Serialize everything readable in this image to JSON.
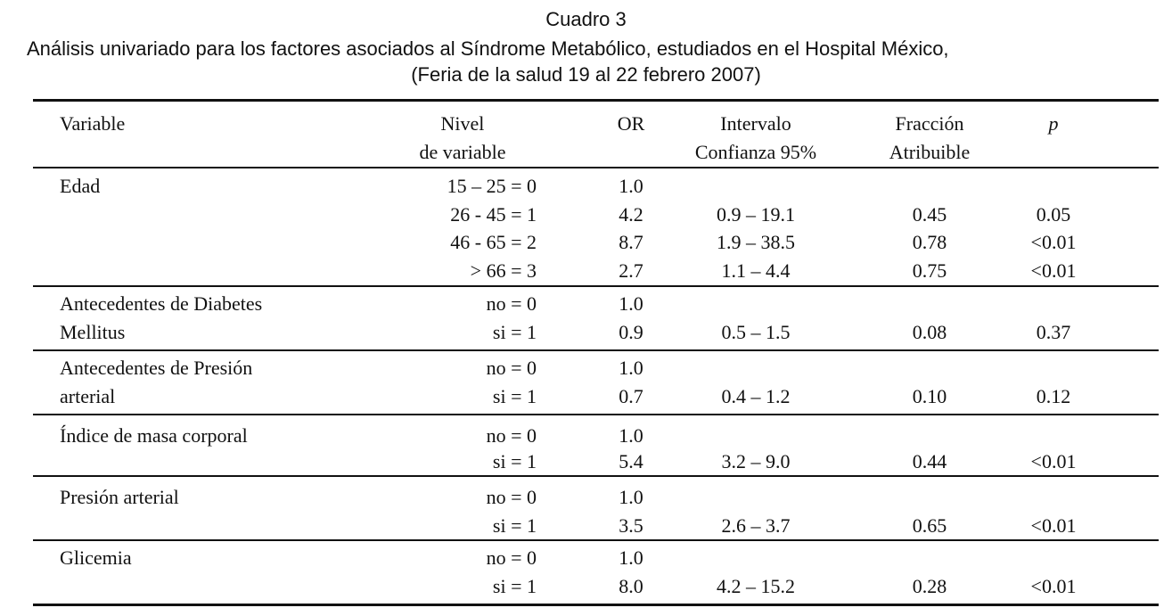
{
  "caption": {
    "line1": "Cuadro 3",
    "line2": "Análisis univariado para los factores asociados al Síndrome Metabólico, estudiados en el Hospital México,",
    "line3": "(Feria de la salud 19 al 22 febrero 2007)"
  },
  "headers": {
    "variable": "Variable",
    "level_1": "Nivel",
    "level_2": "de variable",
    "or": "OR",
    "ci_1": "Intervalo",
    "ci_2": "Confianza 95%",
    "fraction_1": "Fracción",
    "fraction_2": "Atribuible",
    "p": "p"
  },
  "groups": [
    {
      "variable": [
        "Edad"
      ],
      "rows": [
        {
          "level": "15 – 25 = 0",
          "or": "1.0",
          "ci": "",
          "fraction": "",
          "p": ""
        },
        {
          "level": "26 - 45 = 1",
          "or": "4.2",
          "ci": "0.9 – 19.1",
          "fraction": "0.45",
          "p": "0.05"
        },
        {
          "level": "46 - 65 = 2",
          "or": "8.7",
          "ci": "1.9 – 38.5",
          "fraction": "0.78",
          "p": "<0.01"
        },
        {
          "level": "> 66 = 3",
          "or": "2.7",
          "ci": "1.1 – 4.4",
          "fraction": "0.75",
          "p": "<0.01"
        }
      ]
    },
    {
      "variable": [
        "Antecedentes de Diabetes",
        "Mellitus"
      ],
      "rows": [
        {
          "level": "no = 0",
          "or": "1.0",
          "ci": "",
          "fraction": "",
          "p": ""
        },
        {
          "level": "si  = 1",
          "or": "0.9",
          "ci": "0.5 – 1.5",
          "fraction": "0.08",
          "p": "0.37"
        }
      ]
    },
    {
      "variable": [
        "Antecedentes de Presión",
        "arterial"
      ],
      "rows": [
        {
          "level": "no = 0",
          "or": "1.0",
          "ci": "",
          "fraction": "",
          "p": ""
        },
        {
          "level": "si  = 1",
          "or": "0.7",
          "ci": "0.4 – 1.2",
          "fraction": "0.10",
          "p": "0.12"
        }
      ]
    },
    {
      "variable": [
        "Índice de masa corporal"
      ],
      "rows": [
        {
          "level": "no = 0",
          "or": "1.0",
          "ci": "",
          "fraction": "",
          "p": ""
        },
        {
          "level": "si  = 1",
          "or": "5.4",
          "ci": "3.2 – 9.0",
          "fraction": "0.44",
          "p": "<0.01"
        }
      ]
    },
    {
      "variable": [
        "Presión arterial"
      ],
      "rows": [
        {
          "level": "no = 0",
          "or": "1.0",
          "ci": "",
          "fraction": "",
          "p": ""
        },
        {
          "level": "si  = 1",
          "or": "3.5",
          "ci": "2.6 – 3.7",
          "fraction": "0.65",
          "p": "<0.01"
        }
      ]
    },
    {
      "variable": [
        "Glicemia"
      ],
      "rows": [
        {
          "level": "no = 0",
          "or": "1.0",
          "ci": "",
          "fraction": "",
          "p": ""
        },
        {
          "level": "si  = 1",
          "or": "8.0",
          "ci": "4.2 – 15.2",
          "fraction": "0.28",
          "p": "<0.01"
        }
      ]
    }
  ]
}
